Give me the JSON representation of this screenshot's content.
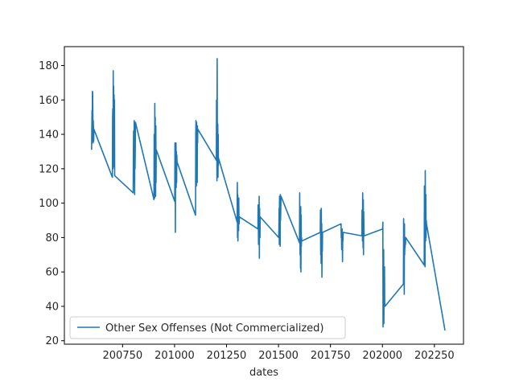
{
  "chart_data": {
    "type": "line",
    "title": "",
    "xlabel": "dates",
    "ylabel": "",
    "xlim": [
      200470,
      202390
    ],
    "ylim": [
      18,
      191
    ],
    "xticks": [
      200750,
      201000,
      201250,
      201500,
      201750,
      202000,
      202250
    ],
    "yticks": [
      20,
      40,
      60,
      80,
      100,
      120,
      140,
      160,
      180
    ],
    "grid": false,
    "legend_position": "lower-left",
    "color": "#1f77b4",
    "series": [
      {
        "name": "Other Sex Offenses (Not Commercialized)",
        "x": [
          200601,
          200602,
          200603,
          200604,
          200605,
          200606,
          200607,
          200608,
          200609,
          200610,
          200611,
          200612,
          200701,
          200702,
          200703,
          200704,
          200705,
          200706,
          200707,
          200708,
          200709,
          200710,
          200711,
          200712,
          200801,
          200802,
          200803,
          200804,
          200805,
          200806,
          200807,
          200808,
          200809,
          200810,
          200811,
          200812,
          200901,
          200902,
          200903,
          200904,
          200905,
          200906,
          200907,
          200908,
          200909,
          200910,
          200911,
          200912,
          201001,
          201002,
          201003,
          201004,
          201005,
          201006,
          201007,
          201008,
          201009,
          201010,
          201011,
          201012,
          201101,
          201102,
          201103,
          201104,
          201105,
          201106,
          201107,
          201108,
          201109,
          201110,
          201111,
          201112,
          201201,
          201202,
          201203,
          201204,
          201205,
          201206,
          201207,
          201208,
          201209,
          201210,
          201211,
          201212,
          201301,
          201302,
          201303,
          201304,
          201305,
          201306,
          201307,
          201308,
          201309,
          201310,
          201311,
          201312,
          201401,
          201402,
          201403,
          201404,
          201405,
          201406,
          201407,
          201408,
          201409,
          201410,
          201411,
          201412,
          201501,
          201502,
          201503,
          201504,
          201505,
          201506,
          201507,
          201508,
          201509,
          201510,
          201511,
          201512,
          201601,
          201602,
          201603,
          201604,
          201605,
          201606,
          201607,
          201608,
          201609,
          201610,
          201611,
          201612,
          201701,
          201702,
          201703,
          201704,
          201705,
          201706,
          201707,
          201708,
          201709,
          201710,
          201711,
          201712,
          201801,
          201802,
          201803,
          201804,
          201805,
          201806,
          201807,
          201808,
          201809,
          201810,
          201811,
          201812,
          201901,
          201902,
          201903,
          201904,
          201905,
          201906,
          201907,
          201908,
          201909,
          201910,
          201911,
          201912,
          202001,
          202002,
          202003,
          202004,
          202005,
          202006,
          202007,
          202008,
          202009,
          202010,
          202011,
          202012,
          202101,
          202102,
          202103,
          202104,
          202105,
          202106,
          202107,
          202108,
          202109,
          202110,
          202111,
          202112,
          202201,
          202202,
          202203,
          202204,
          202205,
          202206,
          202207,
          202208,
          202209,
          202210,
          202211,
          202212,
          202301
        ],
        "y": [
          131,
          143,
          154,
          136,
          165,
          164,
          152,
          135,
          148,
          144,
          136,
          143,
          115,
          150,
          155,
          120,
          177,
          128,
          168,
          145,
          163,
          121,
          160,
          116,
          106,
          130,
          142,
          138,
          112,
          148,
          135,
          105,
          142,
          120,
          130,
          147,
          102,
          140,
          138,
          103,
          158,
          110,
          150,
          122,
          104,
          145,
          112,
          131,
          101,
          135,
          126,
          83,
          132,
          118,
          135,
          109,
          130,
          112,
          128,
          124,
          93,
          140,
          148,
          130,
          110,
          147,
          125,
          140,
          112,
          145,
          135,
          143,
          125,
          160,
          158,
          113,
          184,
          130,
          118,
          146,
          115,
          140,
          122,
          126,
          89,
          112,
          80,
          105,
          78,
          95,
          100,
          84,
          103,
          90,
          88,
          92,
          85,
          99,
          90,
          76,
          94,
          78,
          104,
          68,
          97,
          86,
          80,
          92,
          80,
          85,
          97,
          76,
          104,
          79,
          88,
          75,
          105,
          90,
          96,
          104,
          77,
          106,
          86,
          70,
          95,
          62,
          98,
          60,
          93,
          75,
          80,
          78,
          83,
          96,
          70,
          90,
          65,
          97,
          68,
          88,
          57,
          79,
          72,
          83,
          88,
          80,
          82,
          73,
          77,
          85,
          75,
          66,
          80,
          78,
          82,
          83,
          81,
          96,
          95,
          78,
          106,
          82,
          74,
          102,
          70,
          95,
          86,
          81,
          85,
          89,
          28,
          65,
          40,
          73,
          30,
          55,
          47,
          63,
          42,
          40,
          53,
          91,
          80,
          63,
          47,
          88,
          70,
          78,
          74,
          80,
          76,
          80,
          64,
          110,
          85,
          88,
          63,
          119,
          95,
          78,
          105,
          80,
          90,
          88,
          26
        ]
      }
    ]
  }
}
